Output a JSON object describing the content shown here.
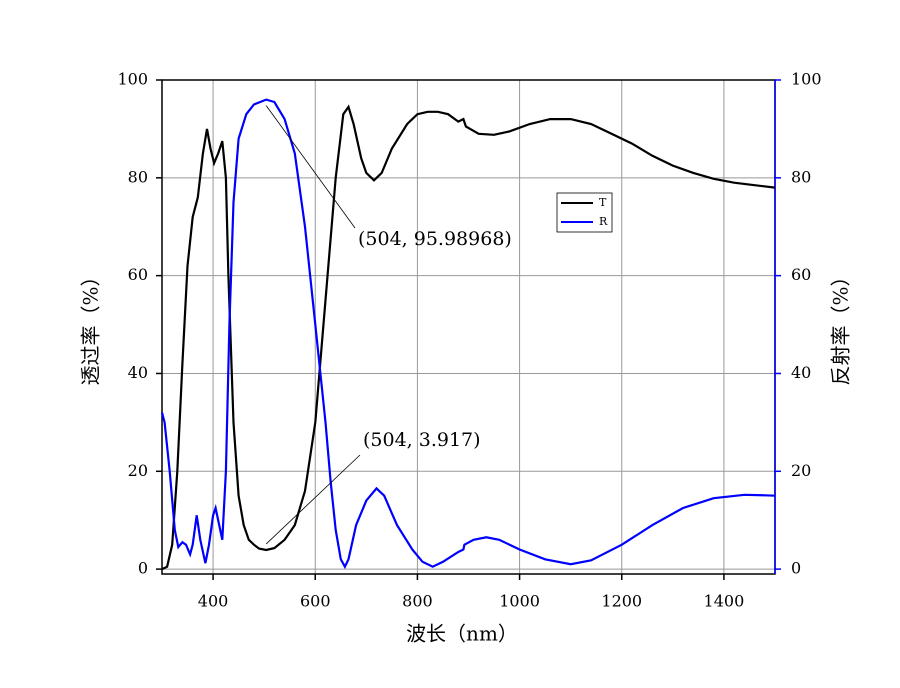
{
  "chart_data": {
    "type": "line",
    "xlabel": "波长（nm）",
    "ylabel": "透过率（%）",
    "y2label": "反射率（%）",
    "xlim": [
      300,
      1500
    ],
    "xticks": [
      400,
      600,
      800,
      1000,
      1200,
      1400
    ],
    "ylim": [
      -1,
      100
    ],
    "yticks": [
      0,
      20,
      40,
      60,
      80,
      100
    ],
    "y2lim": [
      -1,
      100
    ],
    "y2ticks": [
      0,
      20,
      40,
      60,
      80,
      100
    ],
    "grid": true,
    "legend": "center right",
    "series": [
      {
        "name": "T",
        "color": "#000000",
        "x": [
          300,
          310,
          320,
          330,
          340,
          350,
          360,
          370,
          380,
          388,
          395,
          402,
          410,
          418,
          425,
          430,
          440,
          450,
          460,
          470,
          480,
          490,
          504,
          520,
          540,
          560,
          580,
          600,
          620,
          640,
          655,
          665,
          675,
          690,
          700,
          715,
          730,
          750,
          780,
          800,
          820,
          840,
          860,
          880,
          890,
          895,
          920,
          950,
          980,
          1020,
          1060,
          1100,
          1140,
          1180,
          1220,
          1260,
          1300,
          1340,
          1380,
          1420,
          1460,
          1500
        ],
        "values": [
          0,
          0.5,
          5,
          20,
          42,
          62,
          72,
          76,
          85,
          90,
          86,
          83,
          85,
          87.5,
          80,
          60,
          30,
          15,
          9,
          6,
          5,
          4.2,
          3.917,
          4.3,
          6,
          9,
          16,
          30,
          55,
          80,
          93,
          94.5,
          91,
          84,
          81,
          79.5,
          81,
          86,
          91,
          93,
          93.5,
          93.5,
          93,
          91.5,
          92,
          90.5,
          89,
          88.8,
          89.5,
          91,
          92,
          92,
          91,
          89,
          87,
          84.5,
          82.5,
          81,
          79.8,
          79,
          78.5,
          78
        ]
      },
      {
        "name": "R",
        "color": "#0000ff",
        "axis": "y2",
        "x": [
          300,
          305,
          315,
          325,
          332,
          340,
          347,
          355,
          360,
          368,
          375,
          385,
          392,
          400,
          405,
          412,
          418,
          425,
          432,
          440,
          450,
          465,
          480,
          504,
          520,
          540,
          560,
          580,
          600,
          620,
          630,
          640,
          650,
          658,
          665,
          680,
          700,
          720,
          735,
          760,
          790,
          810,
          830,
          850,
          880,
          890,
          892,
          910,
          935,
          960,
          1000,
          1050,
          1100,
          1140,
          1200,
          1260,
          1320,
          1380,
          1440,
          1480,
          1500
        ],
        "values": [
          32,
          30,
          20,
          8,
          4.5,
          5.5,
          5,
          3,
          5,
          11,
          6,
          1.2,
          5,
          11,
          12.5,
          9,
          6,
          20,
          50,
          75,
          88,
          93,
          95,
          95.98968,
          95.5,
          92,
          85,
          70,
          50,
          30,
          18,
          8,
          2,
          0.5,
          2,
          9,
          14,
          16.5,
          15,
          9,
          4,
          1.5,
          0.5,
          1.5,
          3.5,
          4,
          5,
          6,
          6.5,
          6,
          4,
          2,
          1,
          1.8,
          5,
          9,
          12.5,
          14.5,
          15.2,
          15.1,
          15
        ]
      }
    ],
    "annotations": [
      {
        "text": "(504, 95.98968)",
        "x": 504,
        "y": 95.98968,
        "axis": "y2"
      },
      {
        "text": "(504, 3.917)",
        "x": 504,
        "y": 3.917
      }
    ]
  }
}
